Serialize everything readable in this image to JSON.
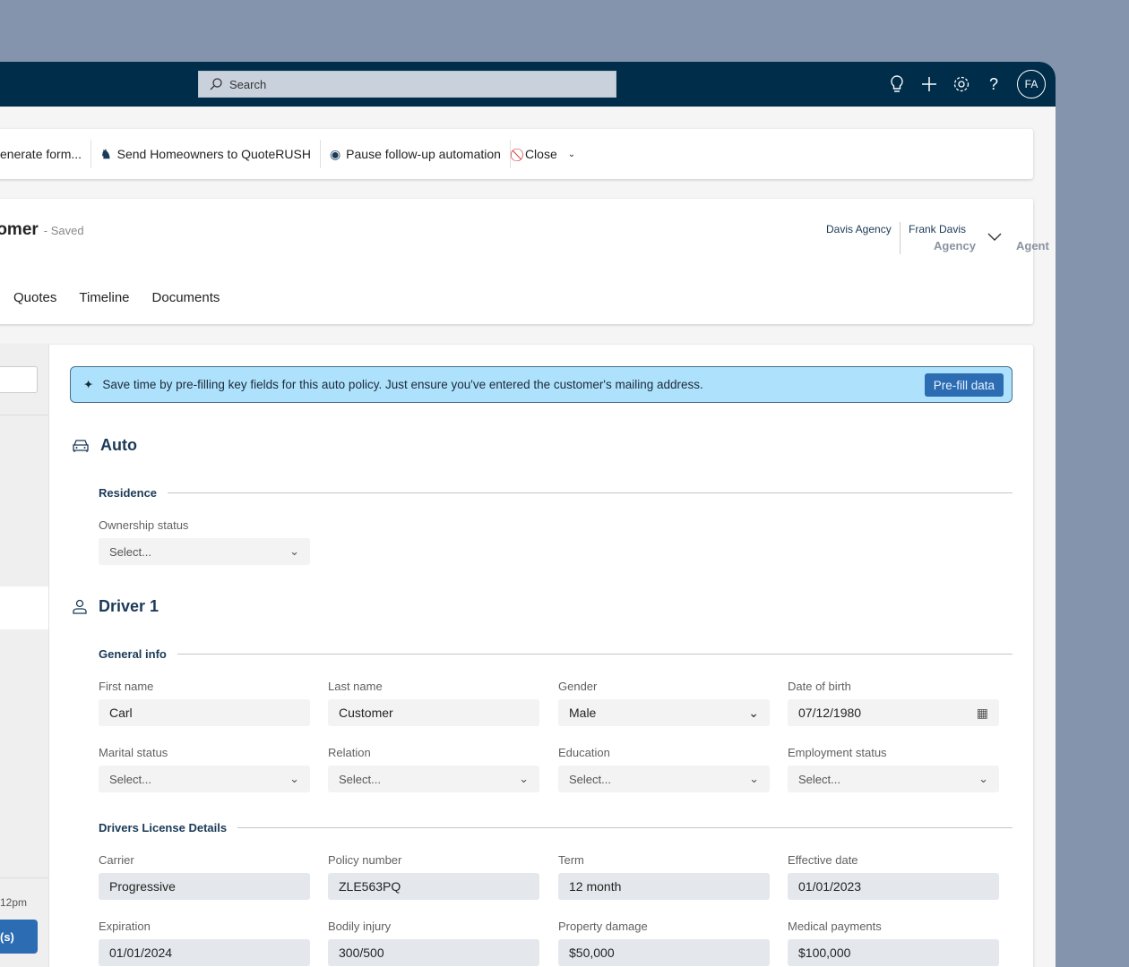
{
  "header": {
    "search_placeholder": "Search",
    "avatar": "FA"
  },
  "toolbar": {
    "items": [
      "enerate form...",
      "Send Homeowners to QuoteRUSH",
      "Pause follow-up automation",
      "Close"
    ]
  },
  "record": {
    "title": "tomer",
    "status": "- Saved",
    "owners": [
      {
        "name": "Davis Agency",
        "role": "Agency"
      },
      {
        "name": "Frank Davis",
        "role": "Agent"
      }
    ],
    "tabs": [
      "Quotes",
      "Timeline",
      "Documents"
    ]
  },
  "left_panel": {
    "time": "12pm",
    "button": "(s)"
  },
  "banner": {
    "text": "Save time by pre-filling key fields for this auto policy. Just ensure you've entered the customer's mailing address.",
    "button": "Pre-fill data",
    "color": "#aee1fc"
  },
  "auto": {
    "title": "Auto",
    "residence": {
      "title": "Residence",
      "ownership_label": "Ownership status",
      "ownership_value": "Select..."
    }
  },
  "driver": {
    "title": "Driver 1",
    "general": {
      "title": "General info",
      "fields": [
        {
          "label": "First name",
          "value": "Carl"
        },
        {
          "label": "Last name",
          "value": "Customer"
        },
        {
          "label": "Gender",
          "value": "Male"
        },
        {
          "label": "Date of birth",
          "value": "07/12/1980"
        },
        {
          "label": "Marital status",
          "value": "Select..."
        },
        {
          "label": "Relation",
          "value": "Select..."
        },
        {
          "label": "Education",
          "value": "Select..."
        },
        {
          "label": "Employment status",
          "value": "Select..."
        }
      ]
    },
    "license": {
      "title": "Drivers License Details",
      "fields": [
        {
          "label": "Carrier",
          "value": "Progressive"
        },
        {
          "label": "Policy number",
          "value": "ZLE563PQ"
        },
        {
          "label": "Term",
          "value": "12 month"
        },
        {
          "label": "Effective date",
          "value": "01/01/2023"
        },
        {
          "label": "Expiration",
          "value": "01/01/2024"
        },
        {
          "label": "Bodily injury",
          "value": "300/500"
        },
        {
          "label": "Property damage",
          "value": "$50,000"
        },
        {
          "label": "Medical payments",
          "value": "$100,000"
        }
      ]
    }
  }
}
